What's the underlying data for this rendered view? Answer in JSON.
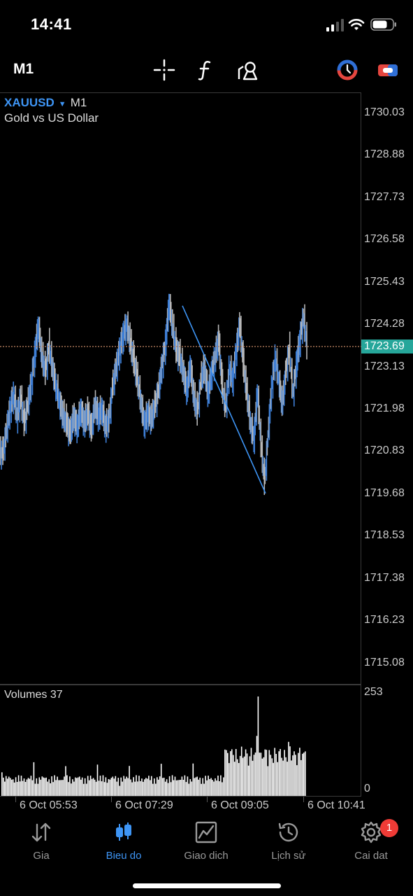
{
  "status_bar": {
    "time": "14:41"
  },
  "toolbar": {
    "timeframe": "M1",
    "tools": [
      "crosshair-icon",
      "function-icon",
      "draw-objects-icon"
    ],
    "right": [
      "one-click-trading-icon",
      "toggle-panel-icon"
    ]
  },
  "chart": {
    "symbol": "XAUUSD",
    "caret": "▼",
    "timeframe": "M1",
    "description": "Gold vs US Dollar",
    "current_price": "1723.69",
    "price_ticks": [
      "1730.03",
      "1728.88",
      "1727.73",
      "1726.58",
      "1725.43",
      "1724.28",
      "1723.13",
      "1721.98",
      "1720.83",
      "1719.68",
      "1718.53",
      "1717.38",
      "1716.23",
      "1715.08"
    ],
    "volume_label": "Volumes 37",
    "volume_ticks": [
      "253",
      "0"
    ],
    "time_ticks": [
      "6 Oct 05:53",
      "6 Oct 07:29",
      "6 Oct 09:05",
      "6 Oct 10:41"
    ],
    "colors": {
      "up": "#3e7fd6",
      "down": "#b8b8b8",
      "trendline": "#3e95f5",
      "price_line": "#26a69a"
    }
  },
  "chart_data": {
    "type": "line",
    "title": "XAUUSD",
    "subtitle": "Gold vs US Dollar",
    "ylim": [
      1714.5,
      1730.6
    ],
    "x": [
      "6 Oct 05:53",
      "6 Oct 07:29",
      "6 Oct 09:05",
      "6 Oct 10:41"
    ],
    "close_series": [
      1720.8,
      1721.4,
      1722.0,
      1722.4,
      1721.8,
      1722.3,
      1721.6,
      1722.1,
      1722.7,
      1723.5,
      1724.3,
      1723.4,
      1723.0,
      1723.7,
      1723.1,
      1722.6,
      1722.2,
      1721.8,
      1721.6,
      1721.3,
      1721.8,
      1721.5,
      1722.0,
      1721.6,
      1721.9,
      1721.4,
      1722.1,
      1721.8,
      1722.0,
      1721.5,
      1721.7,
      1722.6,
      1723.1,
      1723.6,
      1724.0,
      1724.3,
      1723.8,
      1723.3,
      1722.8,
      1722.2,
      1721.6,
      1721.9,
      1721.7,
      1722.1,
      1722.5,
      1723.2,
      1723.8,
      1724.9,
      1724.2,
      1723.6,
      1723.4,
      1723.0,
      1722.5,
      1723.2,
      1722.3,
      1721.9,
      1722.8,
      1723.1,
      1722.4,
      1723.0,
      1723.4,
      1723.9,
      1722.6,
      1722.0,
      1723.1,
      1722.8,
      1723.6,
      1724.3,
      1723.2,
      1722.4,
      1721.6,
      1721.2,
      1722.5,
      1721.0,
      1720.0,
      1721.3,
      1722.6,
      1723.4,
      1722.8,
      1722.1,
      1723.0,
      1723.6,
      1722.4,
      1723.2,
      1723.9,
      1724.5,
      1723.7
    ],
    "trendline": {
      "from": [
        1724.8,
        "6 Oct 07:50"
      ],
      "to": [
        1719.7,
        "6 Oct 09:50"
      ]
    },
    "volume_max": 253
  },
  "tabbar": {
    "tabs": [
      {
        "label": "Gia",
        "icon": "quotes-arrows-icon"
      },
      {
        "label": "Bieu do",
        "icon": "candlestick-icon"
      },
      {
        "label": "Giao dich",
        "icon": "trade-chart-icon"
      },
      {
        "label": "Lịch sử",
        "icon": "history-clock-icon"
      },
      {
        "label": "Cai dat",
        "icon": "settings-gear-icon",
        "badge": "1"
      }
    ],
    "active": 1
  }
}
